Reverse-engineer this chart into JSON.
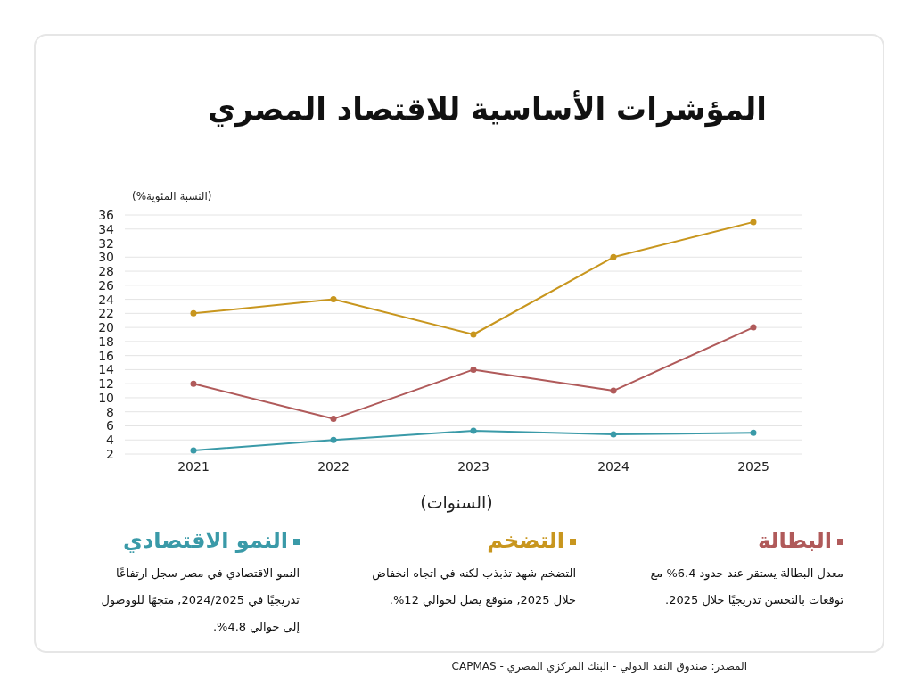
{
  "chart_data": {
    "type": "line",
    "title": "المؤشرات الأساسية للاقتصاد المصري",
    "ylabel": "(النسبة المئوية%)",
    "xlabel": "(السنوات)",
    "categories": [
      "2021",
      "2022",
      "2023",
      "2024",
      "2025"
    ],
    "series": [
      {
        "name": "البطالة",
        "color": "#b05a5a",
        "values": [
          12,
          7,
          14,
          11,
          20
        ]
      },
      {
        "name": "التضخم",
        "color": "#c8961e",
        "values": [
          22,
          24,
          19,
          30,
          35
        ]
      },
      {
        "name": "النمو الاقتصادي",
        "color": "#3a9aa8",
        "values": [
          2.5,
          4,
          5.3,
          4.8,
          5
        ]
      }
    ],
    "ylim": [
      2,
      36
    ],
    "yticks": [
      2,
      4,
      6,
      8,
      10,
      12,
      14,
      16,
      18,
      20,
      22,
      24,
      26,
      28,
      30,
      32,
      34,
      36
    ],
    "grid": "y",
    "legend": "bottom",
    "marker": "circle",
    "annotations": [
      "معدل البطالة يستقر عند حدود 6.4% مع توقعات بالتحسن تدريجيًا خلال 2025.",
      "التضخم شهد تذبذب لكنه في اتجاه انخفاض خلال 2025, متوقع يصل لحوالي 12%.",
      "النمو الاقتصادي في مصر سجل ارتفاعًا تدريجيًا في 2024/2025, متجهًا للووصول إلى حوالي 4.8%.",
      "المصدر: صندوق النقد الدولي - البنك المركزي المصري - CAPMAS"
    ]
  }
}
